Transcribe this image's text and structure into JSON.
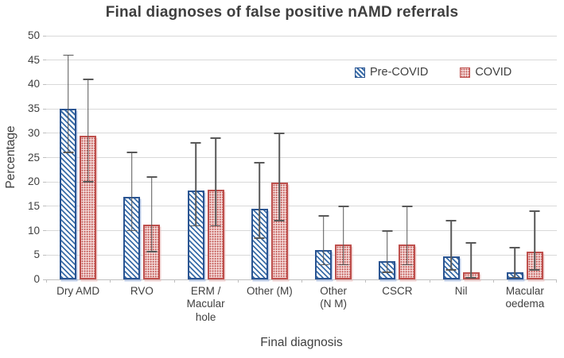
{
  "chart_data": {
    "type": "bar",
    "title": "Final diagnoses of false positive nAMD referrals",
    "xlabel": "Final diagnosis",
    "ylabel": "Percentage",
    "ylim": [
      0,
      50
    ],
    "ytick_step": 5,
    "grid": true,
    "legend_position": "top-right-inside",
    "error_bars": true,
    "categories": [
      "Dry AMD",
      "RVO",
      "ERM /\nMacular\nhole",
      "Other (M)",
      "Other\n(N M)",
      "CSCR",
      "Nil",
      "Macular\noedema"
    ],
    "series": [
      {
        "name": "Pre-COVID",
        "pattern": "diagonal-stripes",
        "color": "#2B5592",
        "stripe_color": "#3A6DA8",
        "values": [
          35,
          17,
          18.2,
          14.5,
          6,
          3.7,
          4.8,
          1.4
        ],
        "err_low": [
          26,
          10,
          11,
          8.5,
          3,
          1.5,
          2,
          0.4
        ],
        "err_high": [
          46,
          26,
          28,
          24,
          13,
          10,
          12,
          6.5
        ]
      },
      {
        "name": "COVID",
        "pattern": "dots",
        "color": "#C0504D",
        "values": [
          29.5,
          11.3,
          18.4,
          19.8,
          7.1,
          7.1,
          1.5,
          5.7
        ],
        "err_low": [
          20,
          5.7,
          11,
          12,
          3,
          3,
          0.3,
          2
        ],
        "err_high": [
          41,
          21,
          29,
          30,
          15,
          15,
          7.5,
          14
        ]
      }
    ],
    "colors": {
      "gridline": "#D9D9D9",
      "axis_line": "#BFBFBF",
      "error_bar": "#595959",
      "text": "#404040",
      "title_text": "#3F3F3F"
    }
  }
}
